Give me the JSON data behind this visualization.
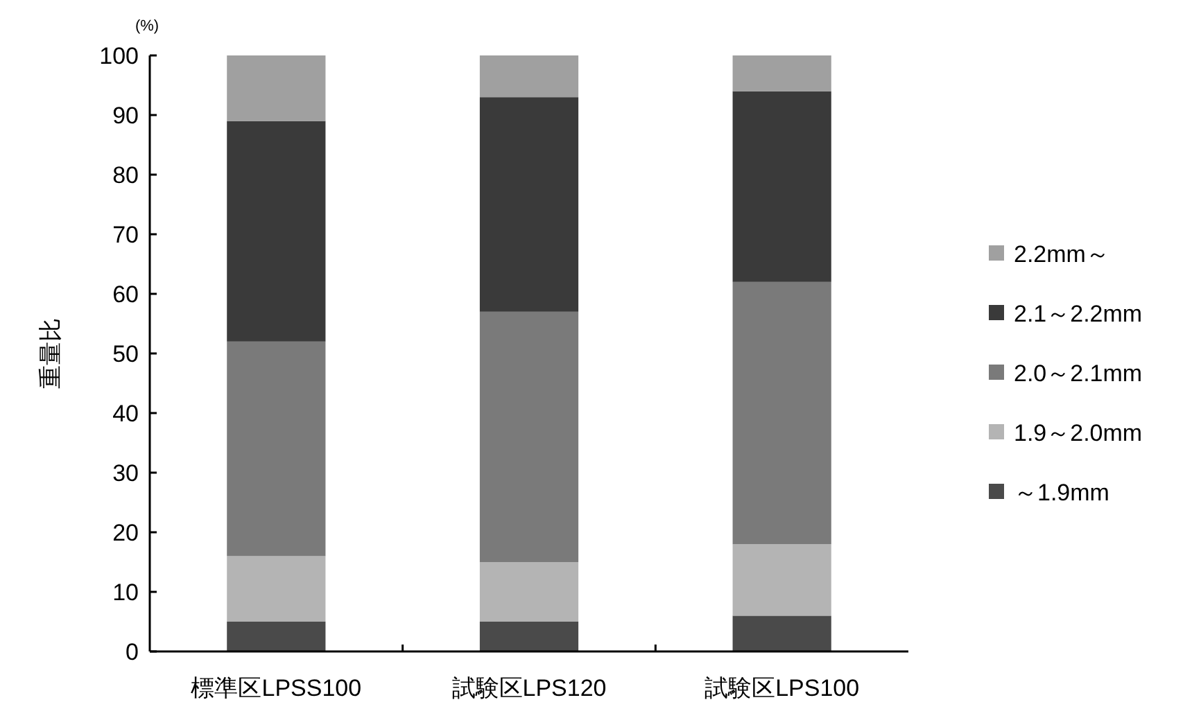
{
  "chart_data": {
    "type": "bar",
    "stacked": true,
    "ylabel": "重量比",
    "annotations": [
      "(%)"
    ],
    "categories": [
      "標準区LPSS100",
      "試験区LPS120",
      "試験区LPS100"
    ],
    "ylim": [
      0,
      100
    ],
    "yticks": [
      0,
      10,
      20,
      30,
      40,
      50,
      60,
      70,
      80,
      90,
      100
    ],
    "grid": false,
    "legend": "right",
    "series": [
      {
        "name": "～1.9mm",
        "color": "#4a4a4a",
        "values": [
          5,
          5,
          6
        ]
      },
      {
        "name": "1.9～2.0mm",
        "color": "#b4b4b4",
        "values": [
          11,
          10,
          12
        ]
      },
      {
        "name": "2.0～2.1mm",
        "color": "#7a7a7a",
        "values": [
          36,
          42,
          44
        ]
      },
      {
        "name": "2.1～2.2mm",
        "color": "#3a3a3a",
        "values": [
          37,
          36,
          32
        ]
      },
      {
        "name": "2.2mm～",
        "color": "#a0a0a0",
        "values": [
          11,
          7,
          6
        ]
      }
    ]
  }
}
